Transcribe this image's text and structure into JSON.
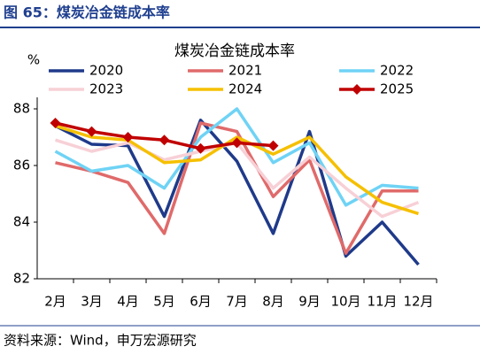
{
  "header": "图 65：煤炭冶金链成本率",
  "source": "资料来源：Wind，申万宏源研究",
  "chart_data": {
    "type": "line",
    "title": "煤炭冶金链成本率",
    "y_label": "%",
    "categories": [
      "2月",
      "3月",
      "4月",
      "5月",
      "6月",
      "7月",
      "8月",
      "9月",
      "10月",
      "11月",
      "12月"
    ],
    "series": [
      {
        "name": "2020",
        "color": "#1f3a8a",
        "values": [
          87.4,
          86.75,
          86.7,
          84.2,
          87.6,
          86.15,
          83.6,
          87.2,
          82.8,
          84.0,
          82.5
        ]
      },
      {
        "name": "2021",
        "color": "#e06a6a",
        "values": [
          86.1,
          85.8,
          85.4,
          83.6,
          87.5,
          87.2,
          84.9,
          86.2,
          82.9,
          85.1,
          85.1
        ]
      },
      {
        "name": "2022",
        "color": "#6fd3f5",
        "values": [
          86.5,
          85.8,
          86.0,
          85.2,
          87.0,
          88.0,
          86.1,
          86.8,
          84.6,
          85.3,
          85.2
        ]
      },
      {
        "name": "2023",
        "color": "#f7d0d6",
        "values": [
          86.9,
          86.5,
          86.8,
          86.2,
          86.5,
          86.8,
          85.2,
          86.3,
          85.2,
          84.2,
          84.7
        ]
      },
      {
        "name": "2024",
        "color": "#f5c000",
        "values": [
          87.4,
          87.0,
          86.9,
          86.1,
          86.2,
          87.0,
          86.4,
          87.0,
          85.6,
          84.7,
          84.3
        ]
      },
      {
        "name": "2025",
        "color": "#c00000",
        "marker": "diamond",
        "values": [
          87.5,
          87.2,
          87.0,
          86.9,
          86.6,
          86.8,
          86.7,
          null,
          null,
          null,
          null
        ]
      }
    ],
    "ylim": [
      82,
      88
    ],
    "yticks": [
      82,
      84,
      86,
      88
    ],
    "grid": false
  }
}
